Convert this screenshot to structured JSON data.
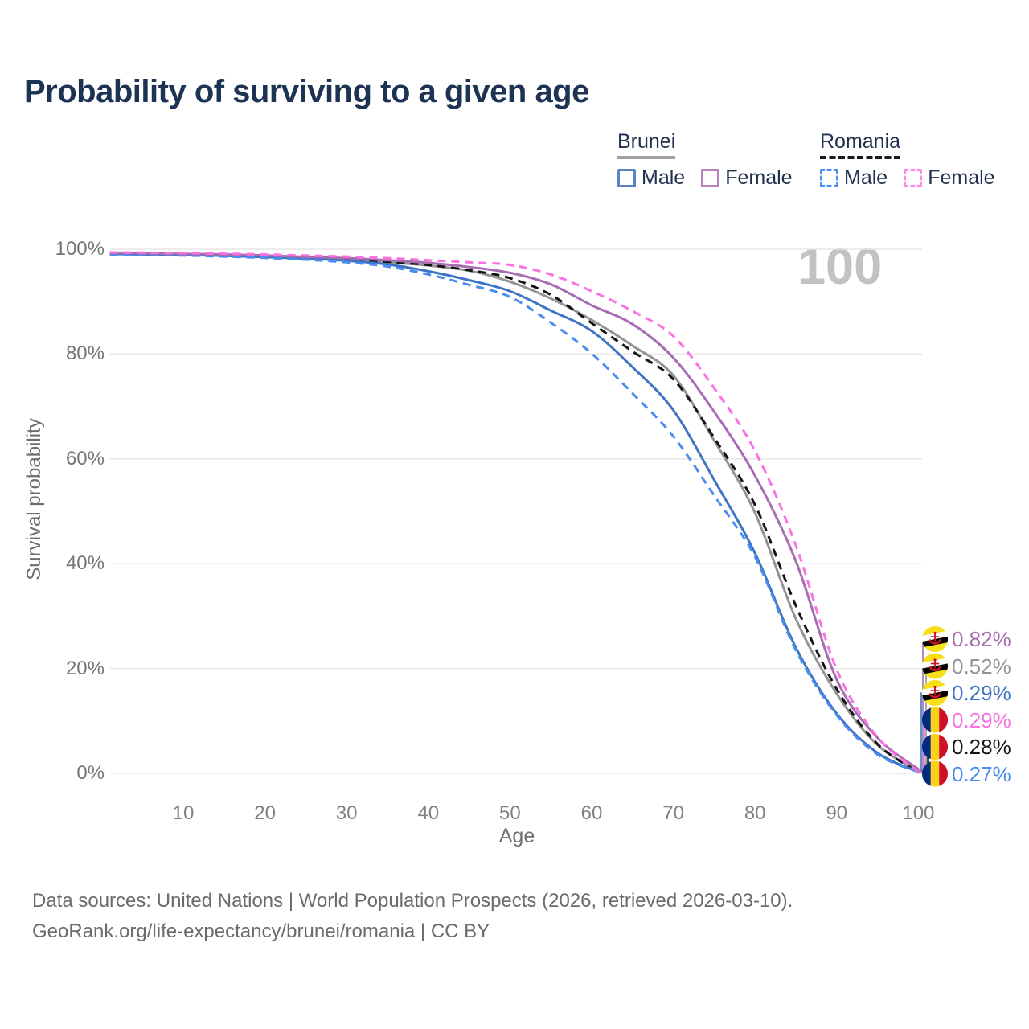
{
  "title": "Probability of surviving to a given age",
  "watermark": "100",
  "legend": {
    "groups": [
      {
        "label": "Brunei",
        "underline_style": "solid",
        "underline_color": "#a0a0a0",
        "items": [
          {
            "label": "Male",
            "box_color": "#5b84c4",
            "box_style": "solid"
          },
          {
            "label": "Female",
            "box_color": "#b583b9",
            "box_style": "solid"
          }
        ]
      },
      {
        "label": "Romania",
        "underline_style": "dashed",
        "underline_color": "#1a1a1a",
        "items": [
          {
            "label": "Male",
            "box_color": "#4d8df0",
            "box_style": "dashed"
          },
          {
            "label": "Female",
            "box_color": "#ff85e8",
            "box_style": "dashed"
          }
        ]
      }
    ]
  },
  "chart_data": {
    "type": "line",
    "title": "Probability of surviving to a given age",
    "xlabel": "Age",
    "ylabel": "Survival probability",
    "xlim": [
      1,
      100
    ],
    "ylim": [
      0,
      100
    ],
    "grid": "horizontal-only",
    "legend_position": "top-right",
    "x_ticks": [
      10,
      20,
      30,
      40,
      50,
      60,
      70,
      80,
      90,
      100
    ],
    "y_ticks": [
      {
        "value": 0,
        "label": "0%"
      },
      {
        "value": 20,
        "label": "20%"
      },
      {
        "value": 40,
        "label": "40%"
      },
      {
        "value": 60,
        "label": "60%"
      },
      {
        "value": 80,
        "label": "80%"
      },
      {
        "value": 100,
        "label": "100%"
      }
    ],
    "x": [
      1,
      5,
      10,
      15,
      20,
      25,
      30,
      35,
      40,
      45,
      50,
      55,
      60,
      65,
      70,
      75,
      80,
      85,
      90,
      95,
      100
    ],
    "series": [
      {
        "id": "brunei-all",
        "name": "Brunei (both sexes)",
        "country": "Brunei",
        "color": "#949494",
        "dash": "solid",
        "end_label": "0.52%",
        "label_row": 1,
        "flag": "brunei",
        "values": [
          99.25,
          99.15,
          99.0,
          98.85,
          98.65,
          98.4,
          98.0,
          97.5,
          96.9,
          95.9,
          93.8,
          90.6,
          86.5,
          81.6,
          75.9,
          63.5,
          49.7,
          29.5,
          15.2,
          5.4,
          0.52
        ]
      },
      {
        "id": "romania-all",
        "name": "Romania (both sexes)",
        "country": "Romania",
        "color": "#141414",
        "dash": "dashed",
        "end_label": "0.28%",
        "label_row": 4,
        "flag": "romania",
        "values": [
          99.2,
          99.1,
          99.0,
          98.9,
          98.7,
          98.45,
          98.1,
          97.6,
          97.0,
          96.0,
          94.5,
          91.3,
          85.9,
          80.5,
          75.2,
          64.0,
          51.2,
          32.0,
          16.1,
          5.6,
          0.28
        ]
      },
      {
        "id": "brunei-male",
        "name": "Brunei Male",
        "country": "Brunei",
        "color": "#3e74c4",
        "dash": "solid",
        "end_label": "0.29%",
        "label_row": 2,
        "flag": "brunei",
        "values": [
          99.1,
          99.0,
          98.9,
          98.75,
          98.5,
          98.2,
          97.8,
          97.1,
          95.8,
          94.1,
          92.0,
          88.3,
          84.4,
          77.5,
          69.3,
          56.0,
          42.0,
          24.0,
          11.4,
          3.9,
          0.29
        ]
      },
      {
        "id": "romania-male",
        "name": "Romania Male",
        "country": "Romania",
        "color": "#4a8cf0",
        "dash": "dashed",
        "end_label": "0.27%",
        "label_row": 5,
        "flag": "romania",
        "values": [
          99.0,
          98.9,
          98.8,
          98.6,
          98.35,
          98.0,
          97.5,
          96.7,
          95.2,
          93.2,
          90.9,
          86.0,
          80.1,
          72.5,
          64.3,
          53.0,
          41.3,
          23.5,
          11.1,
          3.6,
          0.27
        ]
      },
      {
        "id": "brunei-female",
        "name": "Brunei Female",
        "country": "Brunei",
        "color": "#a76db2",
        "dash": "solid",
        "end_label": "0.82%",
        "label_row": 0,
        "flag": "brunei",
        "values": [
          99.3,
          99.2,
          99.1,
          99.0,
          98.8,
          98.55,
          98.3,
          97.9,
          97.4,
          96.6,
          95.5,
          93.3,
          89.3,
          85.7,
          79.3,
          69.0,
          56.8,
          40.5,
          17.9,
          6.8,
          0.82
        ]
      },
      {
        "id": "romania-female",
        "name": "Romania Female",
        "country": "Romania",
        "color": "#fb71e2",
        "dash": "dashed",
        "end_label": "0.29%",
        "label_row": 3,
        "flag": "romania",
        "values": [
          99.4,
          99.35,
          99.25,
          99.15,
          99.0,
          98.8,
          98.6,
          98.3,
          97.9,
          97.5,
          97.0,
          95.2,
          92.0,
          88.2,
          83.4,
          73.5,
          61.5,
          43.5,
          19.8,
          6.9,
          0.29
        ]
      }
    ]
  },
  "footer": {
    "line1": "Data sources: United Nations | World Population Prospects (2026, retrieved 2026-03-10).",
    "line2": "GeoRank.org/life-expectancy/brunei/romania | CC BY"
  }
}
